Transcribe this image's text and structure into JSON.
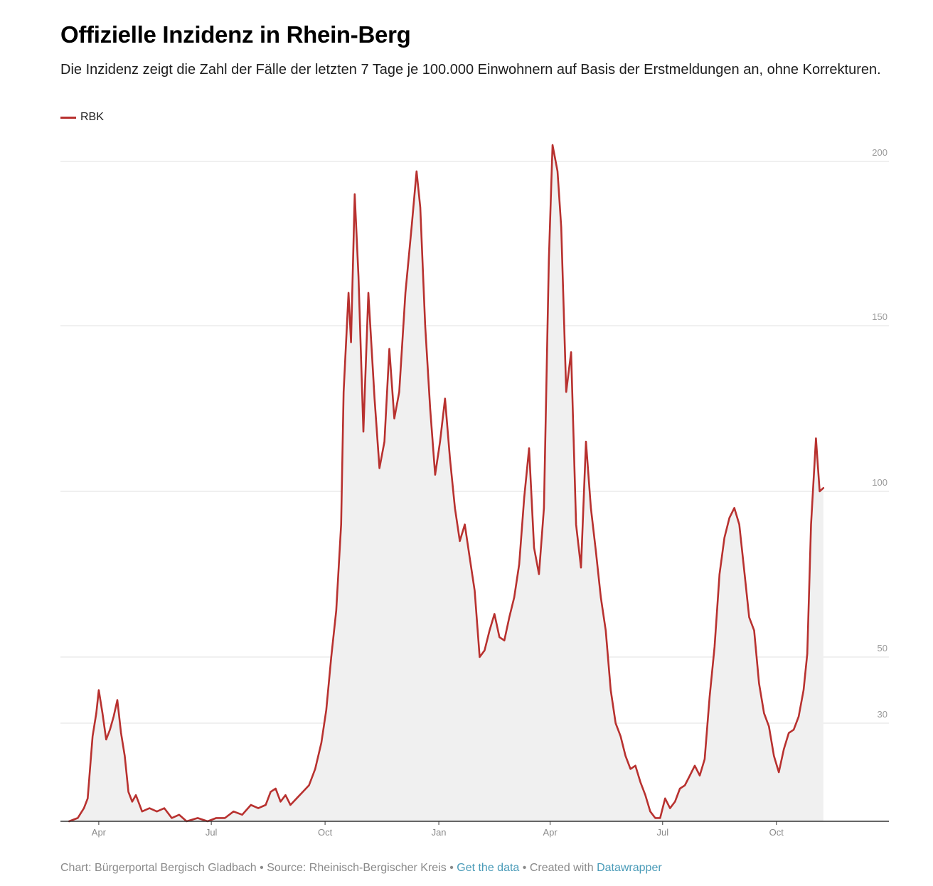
{
  "title": "Offizielle Inzidenz in Rhein-Berg",
  "subtitle": "Die Inzidenz zeigt die Zahl der Fälle der letzten 7 Tage je 100.000 Einwohnern auf Basis der Erstmeldungen an, ohne Korrekturen.",
  "legend": {
    "label": "RBK",
    "color": "#b8312f"
  },
  "footer": {
    "chart_by": "Chart: Bürgerportal Bergisch Gladbach",
    "sep1": " • ",
    "source": "Source: Rheinisch-Bergischer Kreis",
    "sep2": " • ",
    "get_data": "Get the data",
    "sep3": " • ",
    "created_with": "Created with ",
    "tool": "Datawrapper"
  },
  "colors": {
    "line": "#b8312f",
    "area": "#f0f0f0",
    "grid": "#e2e2e2",
    "axis": "#333333",
    "link": "#4a9bb8"
  },
  "chart_data": {
    "type": "area",
    "ylim": [
      0,
      200
    ],
    "yticks": [
      30,
      50,
      100,
      150,
      200
    ],
    "xticks": [
      {
        "date": "2020-04-01",
        "label": "Apr"
      },
      {
        "date": "2020-07-01",
        "label": "Jul"
      },
      {
        "date": "2020-10-01",
        "label": "Oct"
      },
      {
        "date": "2021-01-01",
        "label": "Jan"
      },
      {
        "date": "2021-04-01",
        "label": "Apr"
      },
      {
        "date": "2021-07-01",
        "label": "Jul"
      },
      {
        "date": "2021-10-01",
        "label": "Oct"
      }
    ],
    "xlim": [
      "2020-03-01",
      "2021-12-31"
    ],
    "grid": true,
    "legend_position": "top-left",
    "series": [
      {
        "name": "RBK",
        "points": [
          [
            "2020-03-08",
            0
          ],
          [
            "2020-03-15",
            1
          ],
          [
            "2020-03-20",
            4
          ],
          [
            "2020-03-23",
            7
          ],
          [
            "2020-03-27",
            26
          ],
          [
            "2020-03-30",
            33
          ],
          [
            "2020-04-01",
            40
          ],
          [
            "2020-04-04",
            33
          ],
          [
            "2020-04-07",
            25
          ],
          [
            "2020-04-10",
            28
          ],
          [
            "2020-04-13",
            32
          ],
          [
            "2020-04-16",
            37
          ],
          [
            "2020-04-19",
            27
          ],
          [
            "2020-04-22",
            20
          ],
          [
            "2020-04-25",
            9
          ],
          [
            "2020-04-28",
            6
          ],
          [
            "2020-05-01",
            8
          ],
          [
            "2020-05-06",
            3
          ],
          [
            "2020-05-12",
            4
          ],
          [
            "2020-05-18",
            3
          ],
          [
            "2020-05-24",
            4
          ],
          [
            "2020-05-30",
            1
          ],
          [
            "2020-06-05",
            2
          ],
          [
            "2020-06-11",
            0
          ],
          [
            "2020-06-20",
            1
          ],
          [
            "2020-06-28",
            0
          ],
          [
            "2020-07-05",
            1
          ],
          [
            "2020-07-12",
            1
          ],
          [
            "2020-07-19",
            3
          ],
          [
            "2020-07-26",
            2
          ],
          [
            "2020-08-02",
            5
          ],
          [
            "2020-08-08",
            4
          ],
          [
            "2020-08-14",
            5
          ],
          [
            "2020-08-18",
            9
          ],
          [
            "2020-08-22",
            10
          ],
          [
            "2020-08-26",
            6
          ],
          [
            "2020-08-30",
            8
          ],
          [
            "2020-09-03",
            5
          ],
          [
            "2020-09-08",
            7
          ],
          [
            "2020-09-13",
            9
          ],
          [
            "2020-09-18",
            11
          ],
          [
            "2020-09-23",
            16
          ],
          [
            "2020-09-28",
            24
          ],
          [
            "2020-10-02",
            34
          ],
          [
            "2020-10-06",
            50
          ],
          [
            "2020-10-10",
            64
          ],
          [
            "2020-10-14",
            90
          ],
          [
            "2020-10-16",
            130
          ],
          [
            "2020-10-20",
            160
          ],
          [
            "2020-10-22",
            145
          ],
          [
            "2020-10-25",
            190
          ],
          [
            "2020-10-28",
            165
          ],
          [
            "2020-11-01",
            118
          ],
          [
            "2020-11-05",
            160
          ],
          [
            "2020-11-10",
            128
          ],
          [
            "2020-11-14",
            107
          ],
          [
            "2020-11-18",
            115
          ],
          [
            "2020-11-22",
            143
          ],
          [
            "2020-11-26",
            122
          ],
          [
            "2020-11-30",
            130
          ],
          [
            "2020-12-05",
            160
          ],
          [
            "2020-12-10",
            180
          ],
          [
            "2020-12-14",
            197
          ],
          [
            "2020-12-17",
            186
          ],
          [
            "2020-12-21",
            150
          ],
          [
            "2020-12-25",
            125
          ],
          [
            "2020-12-29",
            105
          ],
          [
            "2021-01-02",
            115
          ],
          [
            "2021-01-06",
            128
          ],
          [
            "2021-01-10",
            110
          ],
          [
            "2021-01-14",
            95
          ],
          [
            "2021-01-18",
            85
          ],
          [
            "2021-01-22",
            90
          ],
          [
            "2021-01-26",
            80
          ],
          [
            "2021-01-30",
            70
          ],
          [
            "2021-02-03",
            50
          ],
          [
            "2021-02-07",
            52
          ],
          [
            "2021-02-11",
            58
          ],
          [
            "2021-02-15",
            63
          ],
          [
            "2021-02-19",
            56
          ],
          [
            "2021-02-23",
            55
          ],
          [
            "2021-02-27",
            62
          ],
          [
            "2021-03-03",
            68
          ],
          [
            "2021-03-07",
            78
          ],
          [
            "2021-03-11",
            98
          ],
          [
            "2021-03-15",
            113
          ],
          [
            "2021-03-19",
            83
          ],
          [
            "2021-03-23",
            75
          ],
          [
            "2021-03-27",
            95
          ],
          [
            "2021-03-31",
            170
          ],
          [
            "2021-04-03",
            205
          ],
          [
            "2021-04-07",
            197
          ],
          [
            "2021-04-10",
            180
          ],
          [
            "2021-04-14",
            130
          ],
          [
            "2021-04-18",
            142
          ],
          [
            "2021-04-22",
            90
          ],
          [
            "2021-04-26",
            77
          ],
          [
            "2021-04-30",
            115
          ],
          [
            "2021-05-04",
            95
          ],
          [
            "2021-05-08",
            82
          ],
          [
            "2021-05-12",
            68
          ],
          [
            "2021-05-16",
            58
          ],
          [
            "2021-05-20",
            40
          ],
          [
            "2021-05-24",
            30
          ],
          [
            "2021-05-28",
            26
          ],
          [
            "2021-06-01",
            20
          ],
          [
            "2021-06-05",
            16
          ],
          [
            "2021-06-09",
            17
          ],
          [
            "2021-06-13",
            12
          ],
          [
            "2021-06-17",
            8
          ],
          [
            "2021-06-21",
            3
          ],
          [
            "2021-06-25",
            1
          ],
          [
            "2021-06-29",
            1
          ],
          [
            "2021-07-03",
            7
          ],
          [
            "2021-07-07",
            4
          ],
          [
            "2021-07-11",
            6
          ],
          [
            "2021-07-15",
            10
          ],
          [
            "2021-07-19",
            11
          ],
          [
            "2021-07-23",
            14
          ],
          [
            "2021-07-27",
            17
          ],
          [
            "2021-07-31",
            14
          ],
          [
            "2021-08-04",
            19
          ],
          [
            "2021-08-08",
            38
          ],
          [
            "2021-08-12",
            53
          ],
          [
            "2021-08-16",
            75
          ],
          [
            "2021-08-20",
            86
          ],
          [
            "2021-08-24",
            92
          ],
          [
            "2021-08-28",
            95
          ],
          [
            "2021-09-01",
            90
          ],
          [
            "2021-09-05",
            76
          ],
          [
            "2021-09-09",
            62
          ],
          [
            "2021-09-13",
            58
          ],
          [
            "2021-09-17",
            42
          ],
          [
            "2021-09-21",
            33
          ],
          [
            "2021-09-25",
            29
          ],
          [
            "2021-09-29",
            20
          ],
          [
            "2021-10-03",
            15
          ],
          [
            "2021-10-07",
            22
          ],
          [
            "2021-10-11",
            27
          ],
          [
            "2021-10-15",
            28
          ],
          [
            "2021-10-19",
            32
          ],
          [
            "2021-10-23",
            40
          ],
          [
            "2021-10-26",
            51
          ],
          [
            "2021-10-29",
            90
          ],
          [
            "2021-11-02",
            116
          ],
          [
            "2021-11-05",
            100
          ],
          [
            "2021-11-08",
            101
          ]
        ]
      }
    ]
  }
}
